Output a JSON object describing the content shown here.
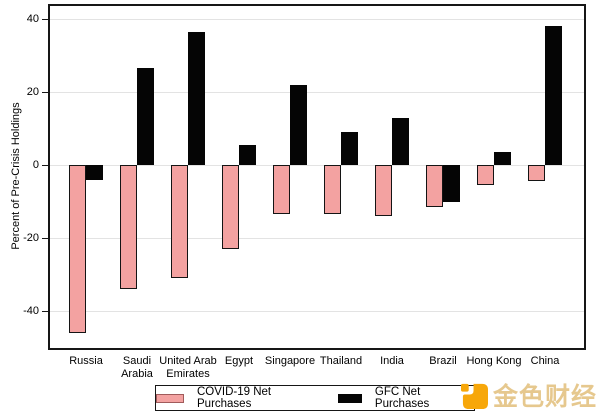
{
  "chart_data": {
    "type": "bar",
    "title": "",
    "xlabel": "",
    "ylabel": "Percent of Pre-Crisis Holdings",
    "ylim": [
      -50,
      44
    ],
    "yticks": [
      40,
      20,
      0,
      -20,
      -40
    ],
    "grid": "horizontal",
    "legend_position": "bottom-center-boxed",
    "categories": [
      "Russia",
      "Saudi Arabia",
      "United Arab Emirates",
      "Egypt",
      "Singapore",
      "Thailand",
      "India",
      "Brazil",
      "Hong Kong",
      "China"
    ],
    "xtick_labels": [
      "Russia",
      "Saudi\nArabia",
      "United Arab\nEmirates",
      "Egypt",
      "Singapore",
      "Thailand",
      "India",
      "Brazil",
      "Hong Kong",
      "China"
    ],
    "series": [
      {
        "name": "COVID-19 Net Purchases",
        "color": "#f3a2a1",
        "border_color": "#141414",
        "values": [
          -46,
          -34,
          -31,
          -23,
          -13.5,
          -13.5,
          -14,
          -11.5,
          -5.5,
          -4.5
        ]
      },
      {
        "name": "GFC Net Purchases",
        "color": "#050505",
        "values": [
          -4,
          26.5,
          36.5,
          5.5,
          22,
          9,
          13,
          -10,
          3.5,
          38
        ]
      }
    ]
  },
  "watermark": {
    "text": "金色财经",
    "text_color": "#e6c88e",
    "logo_color": "#f7a70a",
    "logo_icon": "jinse-finance-logo"
  }
}
